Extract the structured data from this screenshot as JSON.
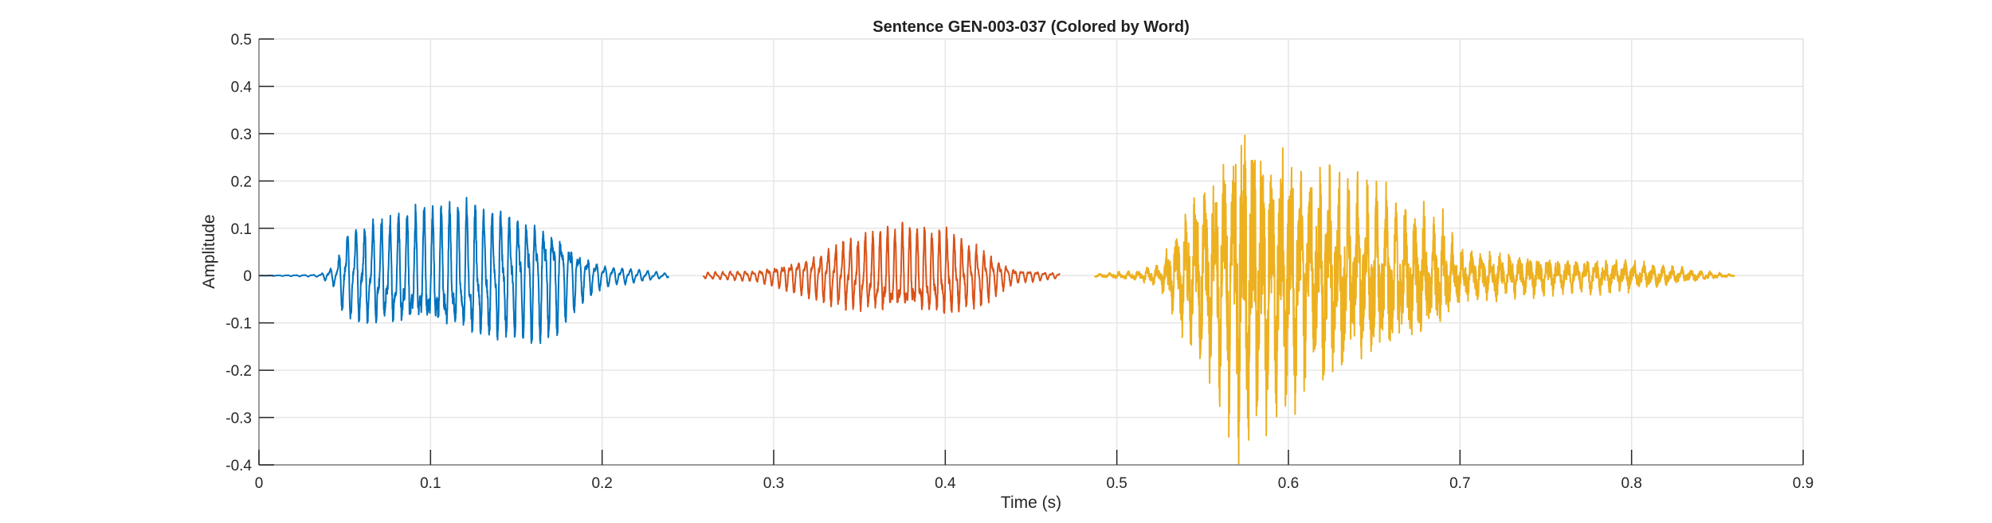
{
  "chart_data": {
    "type": "line",
    "title": "Sentence GEN-003-037 (Colored by Word)",
    "xlabel": "Time (s)",
    "ylabel": "Amplitude",
    "xlim": [
      0,
      0.9
    ],
    "ylim": [
      -0.4,
      0.5
    ],
    "xticks": [
      "0",
      "0.1",
      "0.2",
      "0.3",
      "0.4",
      "0.5",
      "0.6",
      "0.7",
      "0.8",
      "0.9"
    ],
    "yticks": [
      "0.5",
      "0.4",
      "0.3",
      "0.2",
      "0.1",
      "0",
      "-0.1",
      "-0.2",
      "-0.3",
      "-0.4"
    ],
    "grid": true,
    "series": [
      {
        "color": "#0072BD",
        "t_range": [
          0.0,
          0.239
        ],
        "envelope": [
          [
            0,
            0
          ],
          [
            0.035,
            0.003
          ],
          [
            0.045,
            0.03
          ],
          [
            0.05,
            0.12
          ],
          [
            0.1,
            0.17
          ],
          [
            0.13,
            0.18
          ],
          [
            0.17,
            0.16
          ],
          [
            0.19,
            0.06
          ],
          [
            0.2,
            0.03
          ],
          [
            0.239,
            0.005
          ]
        ]
      },
      {
        "color": "#D95319",
        "t_range": [
          0.259,
          0.467
        ],
        "envelope": [
          [
            0.259,
            0.008
          ],
          [
            0.29,
            0.015
          ],
          [
            0.31,
            0.04
          ],
          [
            0.34,
            0.09
          ],
          [
            0.37,
            0.12
          ],
          [
            0.4,
            0.115
          ],
          [
            0.42,
            0.08
          ],
          [
            0.44,
            0.02
          ],
          [
            0.467,
            0.006
          ]
        ]
      },
      {
        "color": "#EDB120",
        "t_range": [
          0.487,
          0.86
        ],
        "envelope": [
          [
            0.487,
            0.004
          ],
          [
            0.51,
            0.012
          ],
          [
            0.525,
            0.03
          ],
          [
            0.54,
            0.18
          ],
          [
            0.56,
            0.32
          ],
          [
            0.575,
            0.46
          ],
          [
            0.59,
            0.38
          ],
          [
            0.61,
            0.3
          ],
          [
            0.65,
            0.22
          ],
          [
            0.69,
            0.15
          ],
          [
            0.7,
            0.07
          ],
          [
            0.75,
            0.05
          ],
          [
            0.8,
            0.04
          ],
          [
            0.83,
            0.02
          ],
          [
            0.86,
            0.002
          ]
        ]
      }
    ]
  }
}
